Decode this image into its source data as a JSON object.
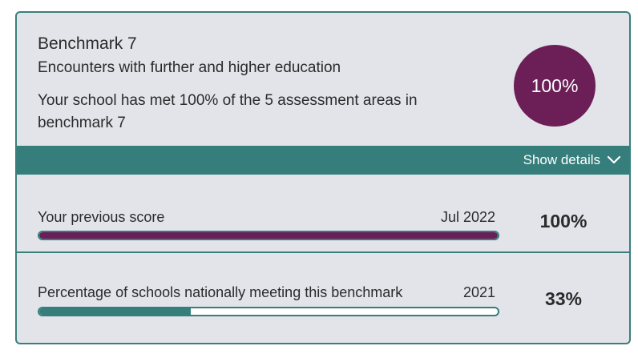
{
  "benchmark": {
    "title": "Benchmark 7",
    "subtitle": "Encounters with further and higher education",
    "description": "Your school has met 100% of the 5 assessment areas in benchmark 7",
    "score_label": "100%",
    "circle_color": "#6c1f57"
  },
  "details": {
    "toggle_label": "Show details",
    "icon": "chevron-down-icon",
    "bar_color": "#357e7c"
  },
  "comparisons": [
    {
      "label": "Your previous score",
      "date": "Jul 2022",
      "value_label": "100%",
      "progress": 1.0,
      "fill_color": "#6c1f57"
    },
    {
      "label": "Percentage of schools nationally meeting this benchmark",
      "date": "2021",
      "value_label": "33%",
      "progress": 0.33,
      "fill_color": "#357e7c"
    }
  ]
}
